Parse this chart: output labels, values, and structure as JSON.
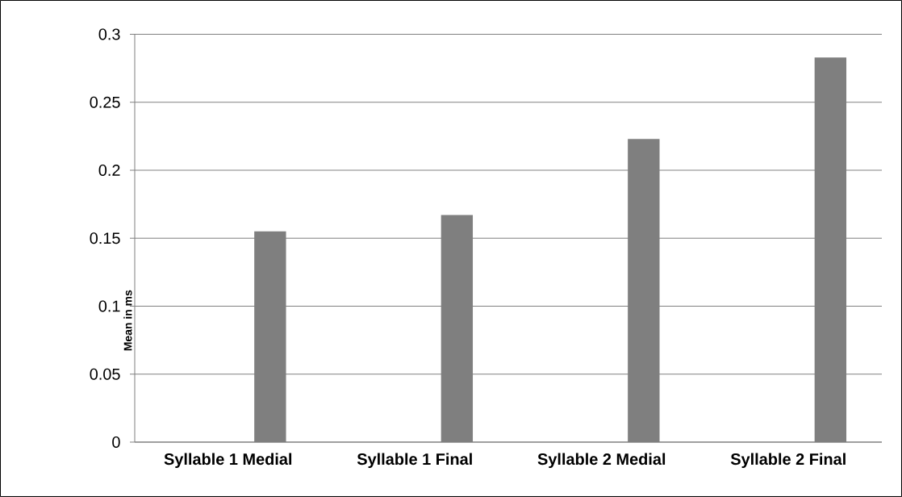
{
  "chart_data": {
    "type": "bar",
    "ylabel": "Mean in ms",
    "categories": [
      "Syllable 1 Medial",
      "Syllable 1 Final",
      "Syllable 2 Medial",
      "Syllable 2 Final"
    ],
    "values": [
      0.155,
      0.167,
      0.223,
      0.283
    ],
    "color": "#7f7f7f",
    "ylim": [
      0,
      0.3
    ],
    "yticks": [
      0,
      0.05,
      0.1,
      0.15,
      0.2,
      0.25,
      0.3
    ],
    "grid": "y"
  }
}
